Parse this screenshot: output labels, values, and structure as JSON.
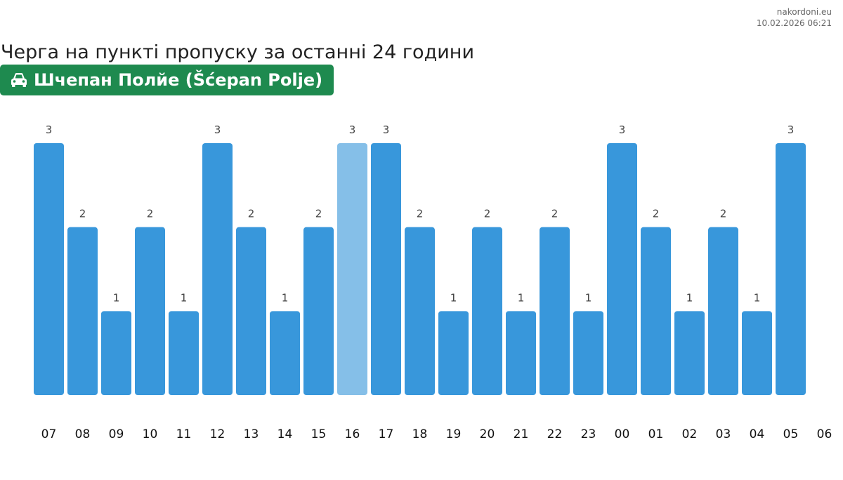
{
  "header": {
    "source": "nakordoni.eu",
    "timestamp": "10.02.2026 06:21",
    "title": "Черга на пункті пропуску за останні 24 години",
    "checkpoint": "Шчепан Полйе (Šćepan Polje)",
    "checkpoint_icon": "car-icon"
  },
  "colors": {
    "bar": "#3897db",
    "bar_highlight": "#85bfe8",
    "badge": "#1e8a4f"
  },
  "chart_data": {
    "type": "bar",
    "categories": [
      "07",
      "08",
      "09",
      "10",
      "11",
      "12",
      "13",
      "14",
      "15",
      "16",
      "17",
      "18",
      "19",
      "20",
      "21",
      "22",
      "23",
      "00",
      "01",
      "02",
      "03",
      "04",
      "05"
    ],
    "values": [
      3,
      2,
      1,
      2,
      1,
      3,
      2,
      1,
      2,
      3,
      3,
      2,
      1,
      2,
      1,
      2,
      1,
      3,
      2,
      1,
      2,
      1,
      3
    ],
    "tick_labels": [
      "07",
      "08",
      "09",
      "10",
      "11",
      "12",
      "13",
      "14",
      "15",
      "16",
      "17",
      "18",
      "19",
      "20",
      "21",
      "22",
      "23",
      "00",
      "01",
      "02",
      "03",
      "04",
      "05",
      "06"
    ],
    "highlight_index": 9,
    "ylim": [
      0,
      3
    ],
    "grid": false,
    "title": "",
    "xlabel": "",
    "ylabel": ""
  }
}
